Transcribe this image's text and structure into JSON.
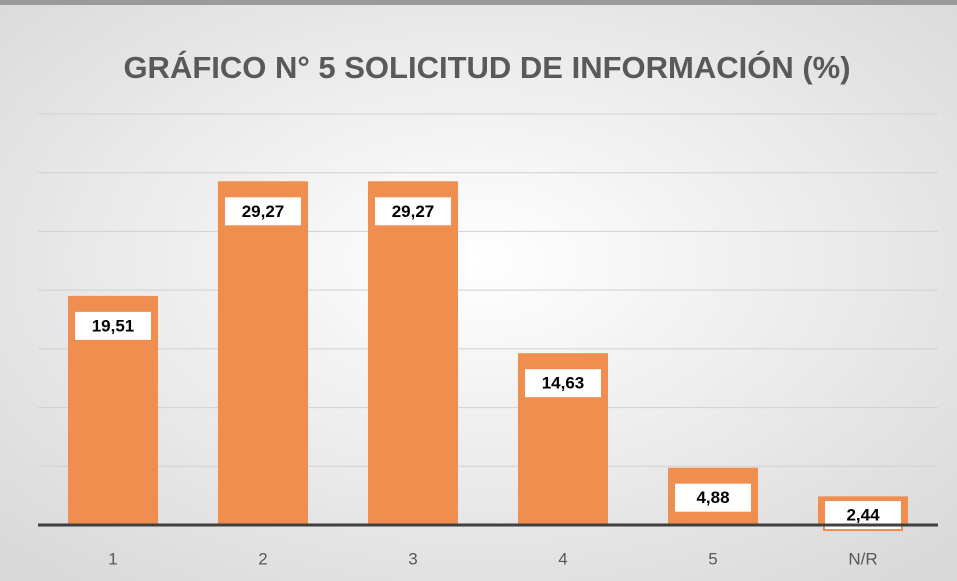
{
  "chart_data": {
    "type": "bar",
    "title": "GRÁFICO N° 5 SOLICITUD DE INFORMACIÓN (%)",
    "categories": [
      "1",
      "2",
      "3",
      "4",
      "5",
      "N/R"
    ],
    "values": [
      19.51,
      29.27,
      29.27,
      14.63,
      4.88,
      2.44
    ],
    "value_labels": [
      "19,51",
      "29,27",
      "29,27",
      "14,63",
      "4,88",
      "2,44"
    ],
    "color": "#ef8e4f",
    "ylim": [
      0,
      35
    ],
    "yticks": [
      0,
      5,
      10,
      15,
      20,
      25,
      30,
      35
    ],
    "grid": true
  }
}
